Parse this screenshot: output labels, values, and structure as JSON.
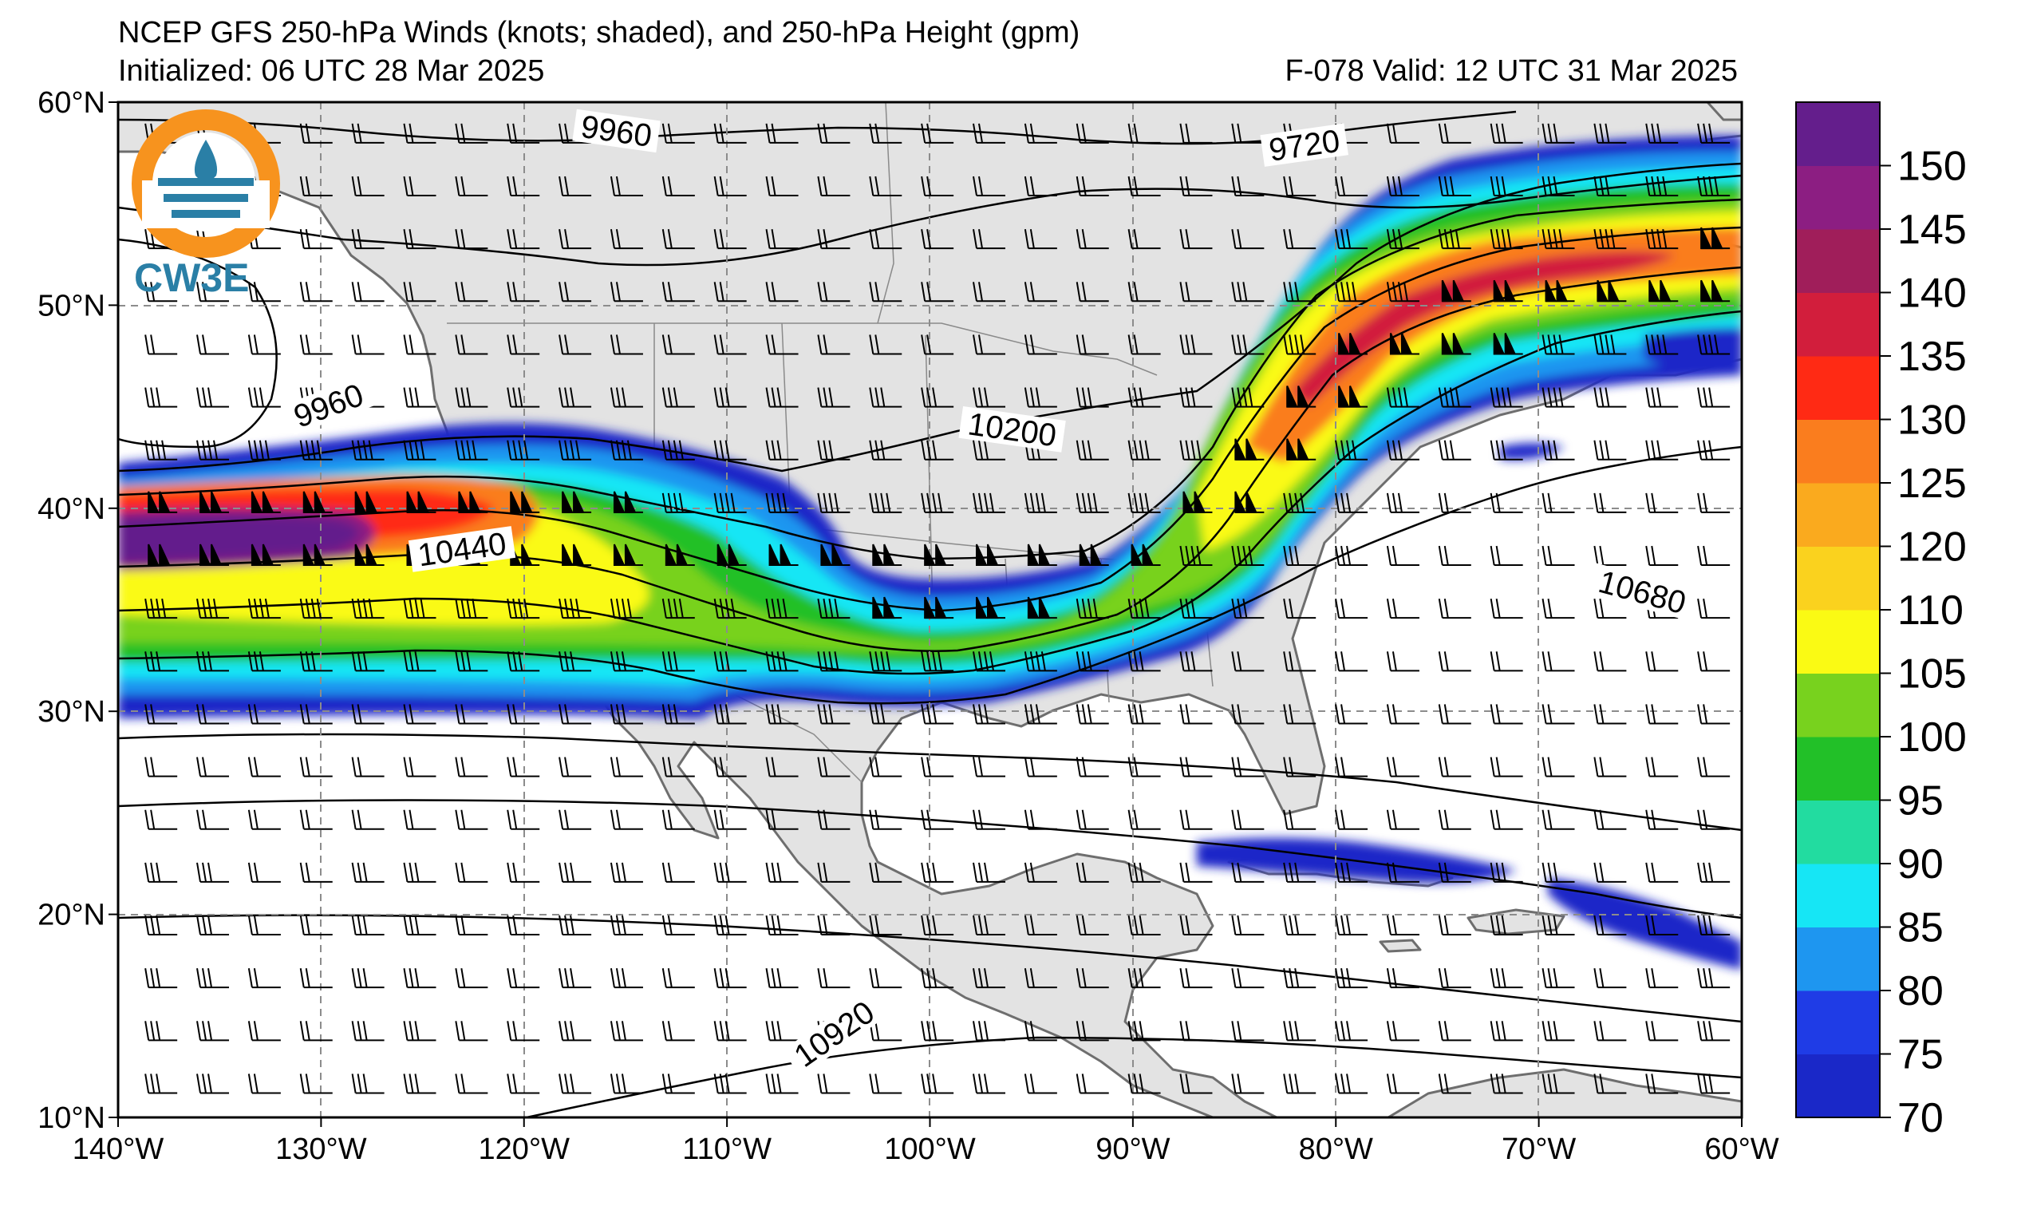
{
  "title": {
    "line1": "NCEP GFS 250-hPa Winds (knots; shaded), and 250-hPa Height (gpm)",
    "initialized": "Initialized: 06 UTC 28 Mar 2025",
    "valid": "F-078  Valid: 12 UTC 31 Mar 2025"
  },
  "logo": {
    "text": "CW3E"
  },
  "map": {
    "lon_range": [
      -140,
      -60
    ],
    "lat_range": [
      10,
      60
    ],
    "lon_ticks": [
      {
        "v": -140,
        "label": "140°W"
      },
      {
        "v": -130,
        "label": "130°W"
      },
      {
        "v": -120,
        "label": "120°W"
      },
      {
        "v": -110,
        "label": "110°W"
      },
      {
        "v": -100,
        "label": "100°W"
      },
      {
        "v": -90,
        "label": "90°W"
      },
      {
        "v": -80,
        "label": "80°W"
      },
      {
        "v": -70,
        "label": "70°W"
      },
      {
        "v": -60,
        "label": "60°W"
      }
    ],
    "lat_ticks": [
      {
        "v": 60,
        "label": "60°N"
      },
      {
        "v": 50,
        "label": "50°N"
      },
      {
        "v": 40,
        "label": "40°N"
      },
      {
        "v": 30,
        "label": "30°N"
      },
      {
        "v": 20,
        "label": "20°N"
      },
      {
        "v": 10,
        "label": "10°N"
      }
    ],
    "grid": true,
    "contour_labels": [
      {
        "text": "9960",
        "lon": -115.5,
        "lat": 58.2,
        "rot": 8
      },
      {
        "text": "9720",
        "lon": -81.5,
        "lat": 57.5,
        "rot": -8
      },
      {
        "text": "9960",
        "lon": -129.5,
        "lat": 44.7,
        "rot": -20
      },
      {
        "text": "10200",
        "lon": -96,
        "lat": 43.5,
        "rot": 8
      },
      {
        "text": "10440",
        "lon": -123,
        "lat": 37.6,
        "rot": -8
      },
      {
        "text": "10680",
        "lon": -65,
        "lat": 35.5,
        "rot": 15
      },
      {
        "text": "10920",
        "lon": -104.5,
        "lat": 13.8,
        "rot": -35
      }
    ]
  },
  "colorbar": {
    "levels": [
      70,
      75,
      80,
      85,
      90,
      95,
      100,
      105,
      110,
      120,
      125,
      130,
      135,
      140,
      145,
      150
    ],
    "labels": [
      "70",
      "75",
      "80",
      "85",
      "90",
      "95",
      "100",
      "105",
      "110",
      "120",
      "125",
      "130",
      "135",
      "140",
      "145",
      "150"
    ],
    "colors": [
      "#1a28c8",
      "#1f3ce6",
      "#1e96f0",
      "#16e6f5",
      "#22dca0",
      "#22c028",
      "#78d21e",
      "#fafa14",
      "#fad21e",
      "#faaa1e",
      "#fa7d1e",
      "#ff2a14",
      "#d21e3c",
      "#a01e5a",
      "#8c1e82",
      "#641e8c"
    ]
  },
  "colors": {
    "land": "#e3e3e3",
    "coast": "#6e6e6e",
    "grid": "#8c8c8c",
    "contour": "#000000"
  }
}
